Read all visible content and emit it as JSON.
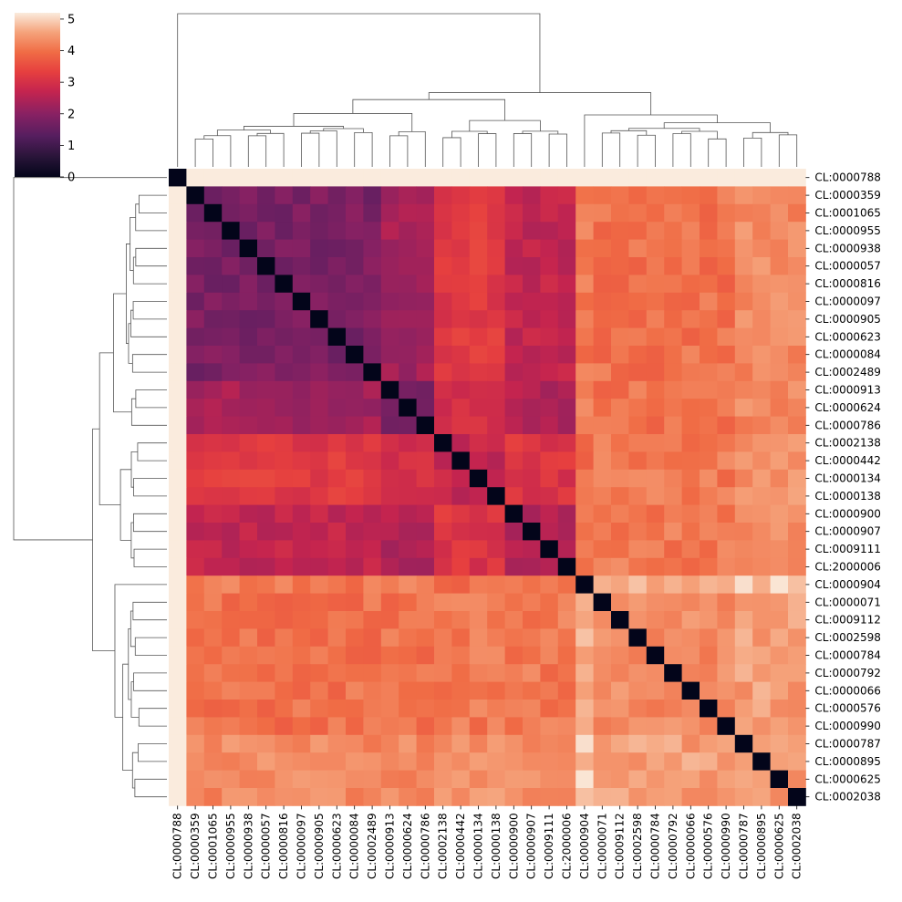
{
  "chart_data": {
    "type": "heatmap",
    "title": "",
    "xlabel": "",
    "ylabel": "",
    "labels": [
      "CL:0000788",
      "CL:0000359",
      "CL:0001065",
      "CL:0000955",
      "CL:0000938",
      "CL:0000057",
      "CL:0000816",
      "CL:0000097",
      "CL:0000905",
      "CL:0000623",
      "CL:0000084",
      "CL:0002489",
      "CL:0000913",
      "CL:0000624",
      "CL:0000786",
      "CL:0002138",
      "CL:0000442",
      "CL:0000134",
      "CL:0000138",
      "CL:0000900",
      "CL:0000907",
      "CL:0009111",
      "CL:2000006",
      "CL:0000904",
      "CL:0000071",
      "CL:0009112",
      "CL:0002598",
      "CL:0000784",
      "CL:0000792",
      "CL:0000066",
      "CL:0000576",
      "CL:0000990",
      "CL:0000787",
      "CL:0000895",
      "CL:0000625",
      "CL:0002038"
    ],
    "groups": [
      0,
      1,
      1,
      1,
      1,
      1,
      1,
      1,
      1,
      1,
      1,
      1,
      2,
      2,
      2,
      3,
      3,
      3,
      3,
      4,
      4,
      4,
      4,
      5,
      6,
      6,
      6,
      6,
      6,
      6,
      6,
      6,
      7,
      7,
      7,
      7
    ],
    "group_values": [
      [
        0.0,
        5.2,
        5.2,
        5.2,
        5.2,
        5.2,
        5.2,
        5.2
      ],
      [
        5.2,
        1.8,
        2.3,
        3.2,
        2.7,
        4.1,
        4.0,
        4.3
      ],
      [
        5.2,
        2.3,
        1.9,
        2.9,
        2.5,
        4.1,
        4.0,
        4.3
      ],
      [
        5.2,
        3.2,
        2.9,
        2.7,
        3.1,
        4.0,
        4.1,
        4.4
      ],
      [
        5.2,
        2.7,
        2.5,
        3.1,
        2.5,
        4.1,
        4.1,
        4.3
      ],
      [
        5.2,
        4.1,
        4.1,
        4.0,
        4.1,
        0.0,
        4.6,
        4.9
      ],
      [
        5.2,
        4.0,
        4.0,
        4.1,
        4.1,
        4.6,
        4.3,
        4.5
      ],
      [
        5.2,
        4.3,
        4.3,
        4.4,
        4.3,
        4.9,
        4.5,
        4.4
      ]
    ],
    "colorbar": {
      "min": 0,
      "max": 5.2,
      "ticks": [
        0,
        1,
        2,
        3,
        4,
        5
      ]
    },
    "colormap": "rocket",
    "dendrogram": true
  }
}
